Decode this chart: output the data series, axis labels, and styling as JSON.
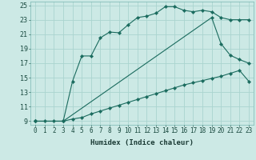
{
  "xlabel": "Humidex (Indice chaleur)",
  "bg_color": "#cce9e5",
  "grid_color": "#aad4cf",
  "line_color": "#1a6b5e",
  "xlim": [
    -0.5,
    23.5
  ],
  "ylim": [
    8.5,
    25.5
  ],
  "xticks": [
    0,
    1,
    2,
    3,
    4,
    5,
    6,
    7,
    8,
    9,
    10,
    11,
    12,
    13,
    14,
    15,
    16,
    17,
    18,
    19,
    20,
    21,
    22,
    23
  ],
  "yticks": [
    9,
    11,
    13,
    15,
    17,
    19,
    21,
    23,
    25
  ],
  "line1_x": [
    0,
    1,
    2,
    3,
    4,
    5,
    6,
    7,
    8,
    9,
    10,
    11,
    12,
    13,
    14,
    15,
    16,
    17,
    18,
    19,
    20,
    21,
    22,
    23
  ],
  "line1_y": [
    9,
    9,
    9,
    9,
    14.5,
    18,
    18,
    20.5,
    21.3,
    21.2,
    22.3,
    23.3,
    23.5,
    23.9,
    24.8,
    24.8,
    24.3,
    24.1,
    24.3,
    24.1,
    23.3,
    23.0,
    23.0,
    23.0
  ],
  "line2_x": [
    0,
    3,
    19,
    20,
    21,
    22,
    23
  ],
  "line2_y": [
    9,
    9,
    23.3,
    19.7,
    18.1,
    17.5,
    17.0
  ],
  "line3_x": [
    0,
    3,
    4,
    5,
    6,
    7,
    8,
    9,
    10,
    11,
    12,
    13,
    14,
    15,
    16,
    17,
    18,
    19,
    20,
    21,
    22,
    23
  ],
  "line3_y": [
    9,
    9,
    9.3,
    9.5,
    10.0,
    10.4,
    10.8,
    11.2,
    11.6,
    12.0,
    12.4,
    12.8,
    13.2,
    13.6,
    14.0,
    14.3,
    14.6,
    14.9,
    15.2,
    15.6,
    16.0,
    14.5
  ],
  "xlabel_fontsize": 6.5,
  "tick_fontsize": 5.5
}
